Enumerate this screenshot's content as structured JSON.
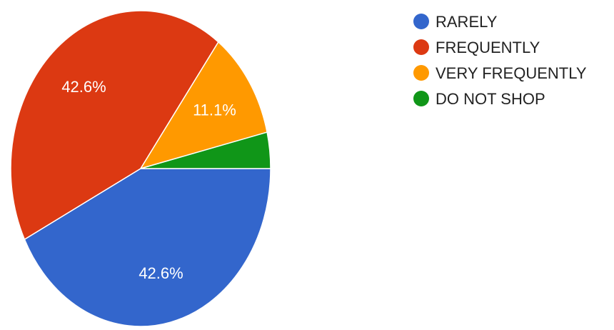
{
  "chart_data": {
    "type": "pie",
    "categories": [
      "RARELY",
      "FREQUENTLY",
      "VERY FREQUENTLY",
      "DO NOT SHOP"
    ],
    "values": [
      42.6,
      42.6,
      11.1,
      3.7
    ],
    "data_labels": [
      "42.6%",
      "42.6%",
      "11.1%",
      ""
    ],
    "colors": [
      "#3366cc",
      "#dc3912",
      "#ff9900",
      "#109618"
    ],
    "legend_position": "right"
  }
}
